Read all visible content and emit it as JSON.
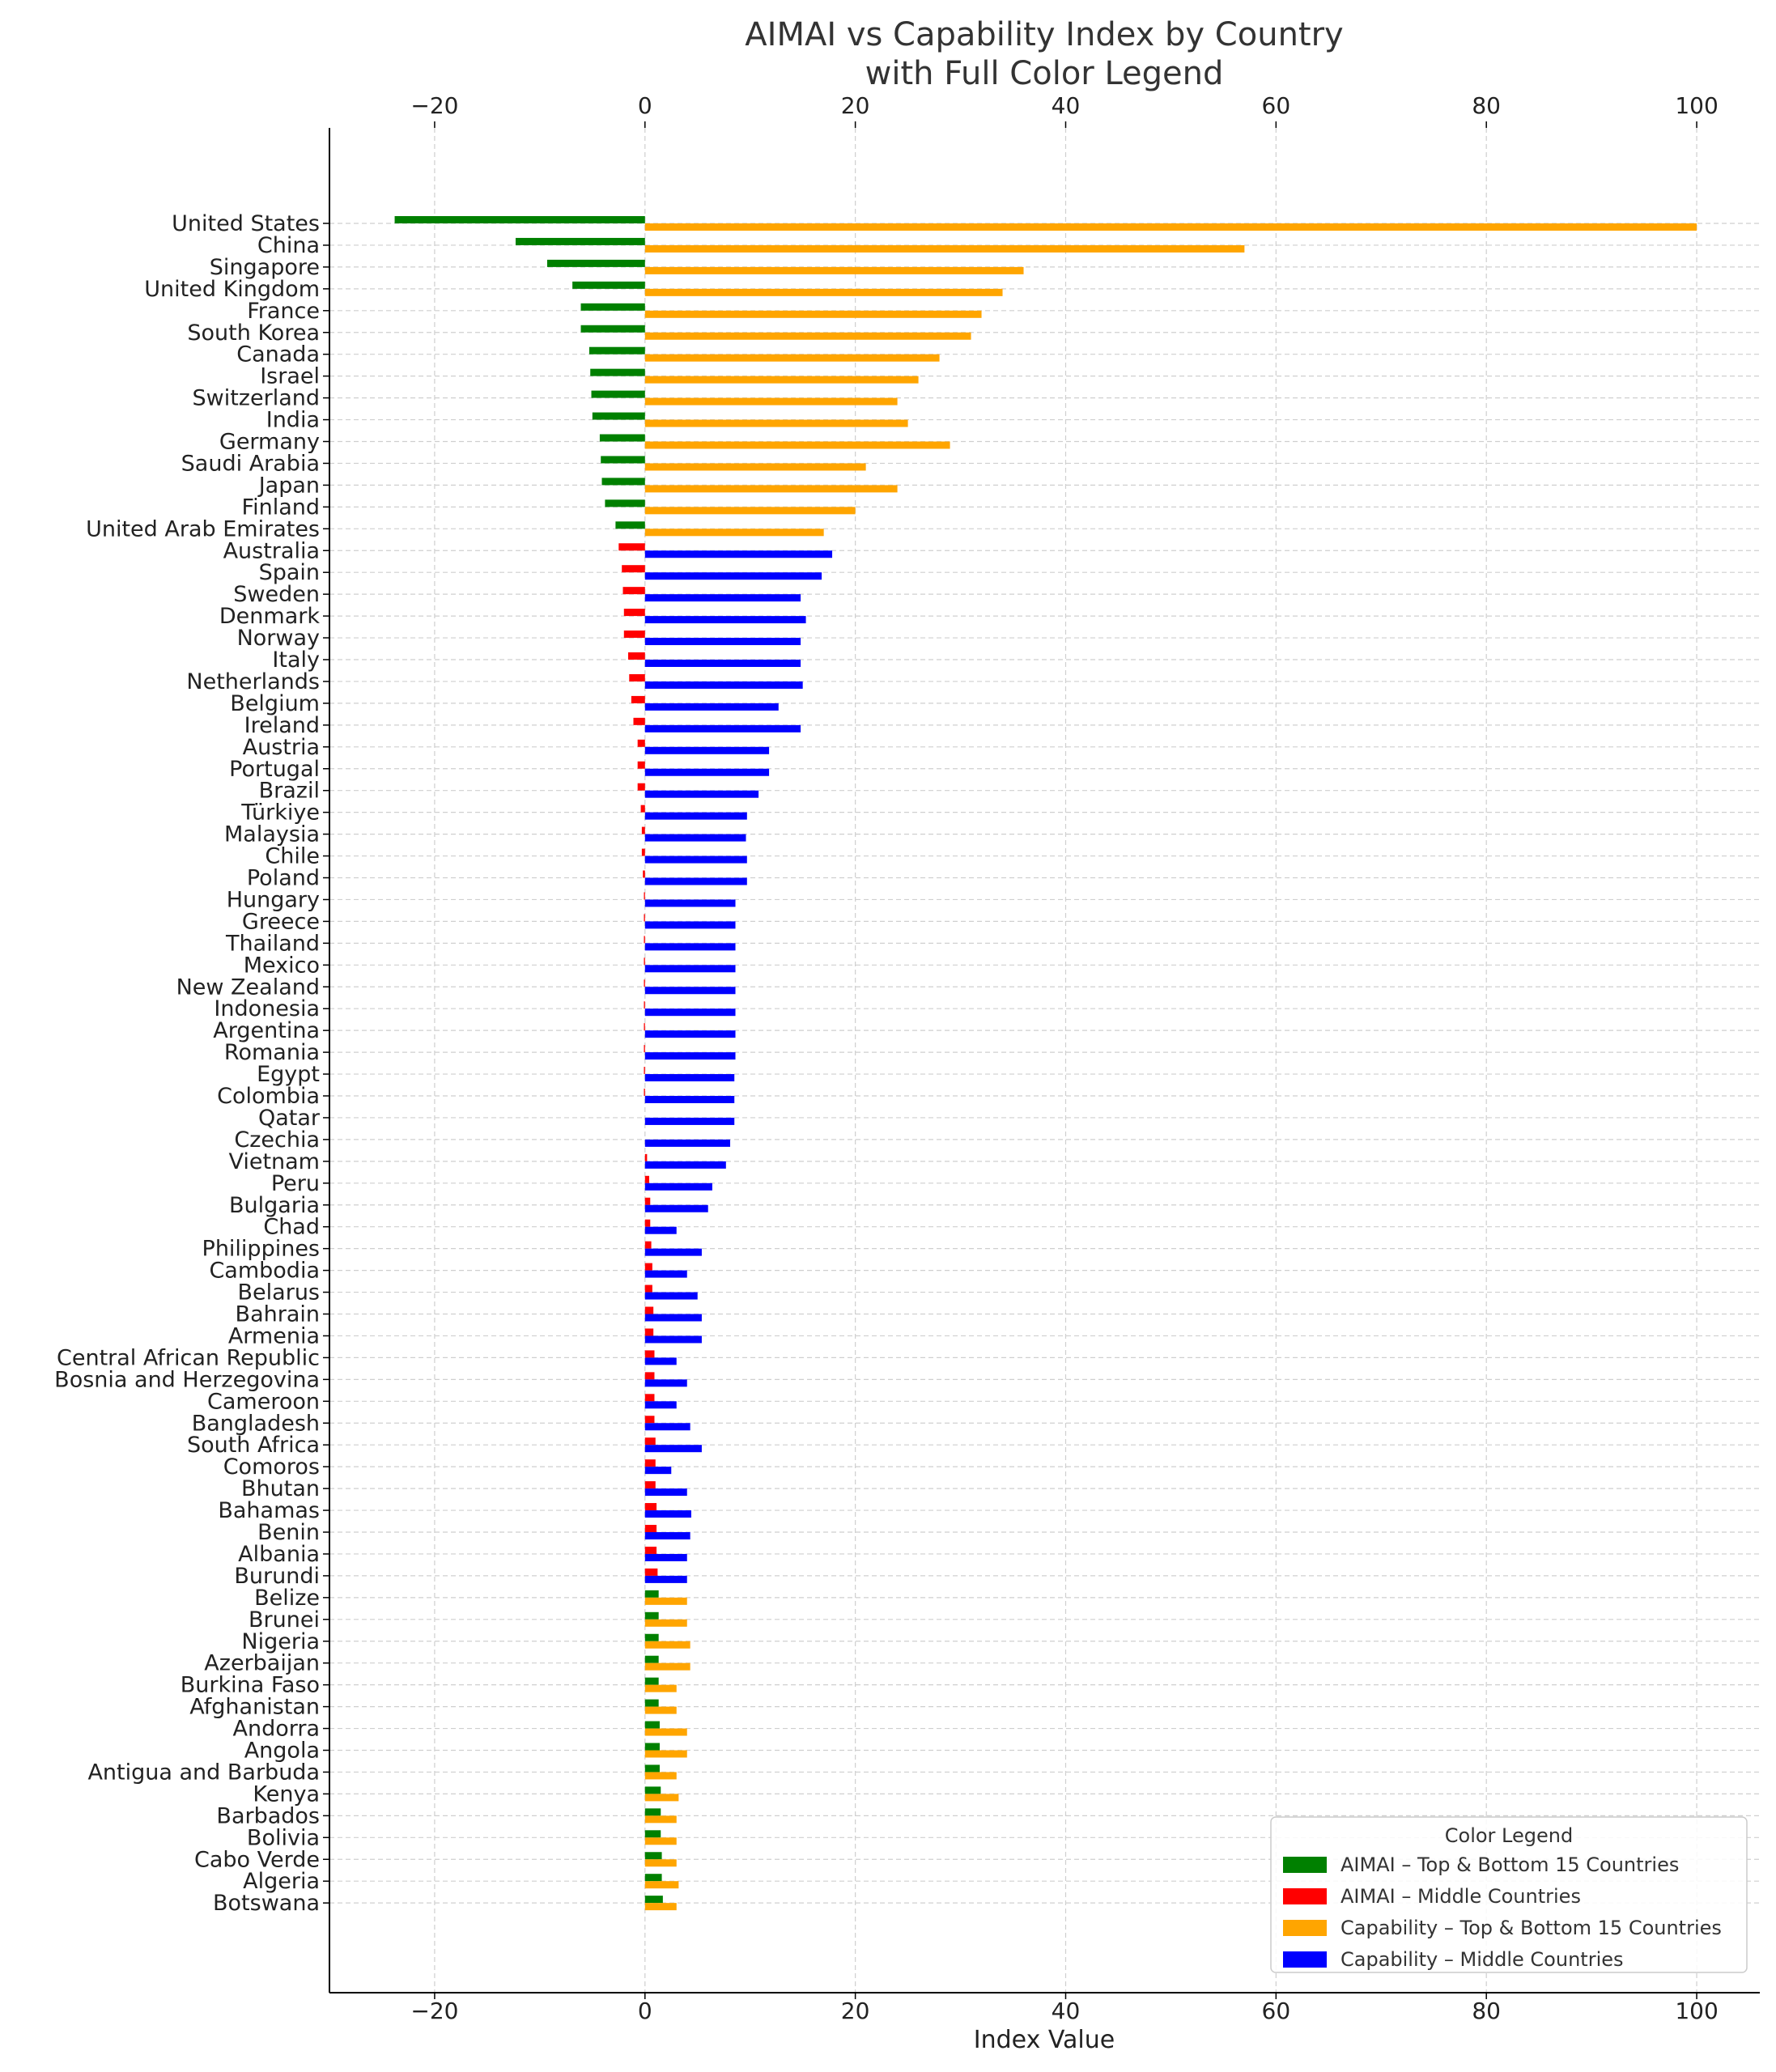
{
  "chart_data": {
    "type": "bar",
    "orientation": "horizontal",
    "title": "AIMAI vs Capability Index by Country\nwith Full Color Legend",
    "xlabel": "Index Value",
    "ylabel": "",
    "xlim": [
      -30,
      106
    ],
    "xticks": [
      -20,
      0,
      20,
      40,
      60,
      80,
      100
    ],
    "grid": true,
    "legend": {
      "title": "Color Legend",
      "placement": "lower-right",
      "entries": [
        {
          "label": "AIMAI – Top & Bottom 15 Countries",
          "color": "#008000"
        },
        {
          "label": "AIMAI – Middle Countries",
          "color": "#ff0000"
        },
        {
          "label": "Capability – Top & Bottom 15 Countries",
          "color": "#ffa500"
        },
        {
          "label": "Capability – Middle Countries",
          "color": "#0000ff"
        }
      ]
    },
    "categories": [
      "United States",
      "China",
      "Singapore",
      "United Kingdom",
      "France",
      "South Korea",
      "Canada",
      "Israel",
      "Switzerland",
      "India",
      "Germany",
      "Saudi Arabia",
      "Japan",
      "Finland",
      "United Arab Emirates",
      "Australia",
      "Spain",
      "Sweden",
      "Denmark",
      "Norway",
      "Italy",
      "Netherlands",
      "Belgium",
      "Ireland",
      "Austria",
      "Portugal",
      "Brazil",
      "Türkiye",
      "Malaysia",
      "Chile",
      "Poland",
      "Hungary",
      "Greece",
      "Thailand",
      "Mexico",
      "New Zealand",
      "Indonesia",
      "Argentina",
      "Romania",
      "Egypt",
      "Colombia",
      "Qatar",
      "Czechia",
      "Vietnam",
      "Peru",
      "Bulgaria",
      "Chad",
      "Philippines",
      "Cambodia",
      "Belarus",
      "Bahrain",
      "Armenia",
      "Central African Republic",
      "Bosnia and Herzegovina",
      "Cameroon",
      "Bangladesh",
      "South Africa",
      "Comoros",
      "Bhutan",
      "Bahamas",
      "Benin",
      "Albania",
      "Burundi",
      "Belize",
      "Brunei",
      "Nigeria",
      "Azerbaijan",
      "Burkina Faso",
      "Afghanistan",
      "Andorra",
      "Angola",
      "Antigua and Barbuda",
      "Kenya",
      "Barbados",
      "Bolivia",
      "Cabo Verde",
      "Algeria",
      "Botswana"
    ],
    "series": [
      {
        "name": "AIMAI",
        "values": [
          -23.8,
          -12.3,
          -9.3,
          -6.9,
          -6.1,
          -6.1,
          -5.3,
          -5.2,
          -5.1,
          -5.0,
          -4.3,
          -4.2,
          -4.1,
          -3.8,
          -2.8,
          -2.5,
          -2.2,
          -2.1,
          -2.0,
          -2.0,
          -1.6,
          -1.5,
          -1.3,
          -1.1,
          -0.7,
          -0.7,
          -0.7,
          -0.4,
          -0.3,
          -0.3,
          -0.2,
          -0.1,
          -0.1,
          -0.1,
          -0.1,
          -0.1,
          -0.1,
          -0.1,
          -0.1,
          -0.1,
          -0.1,
          0.0,
          0.0,
          0.2,
          0.4,
          0.5,
          0.5,
          0.6,
          0.7,
          0.7,
          0.8,
          0.8,
          0.9,
          0.9,
          0.9,
          0.9,
          1.0,
          1.0,
          1.0,
          1.1,
          1.1,
          1.1,
          1.2,
          1.3,
          1.3,
          1.3,
          1.3,
          1.3,
          1.3,
          1.4,
          1.4,
          1.4,
          1.5,
          1.5,
          1.5,
          1.6,
          1.6,
          1.7
        ]
      },
      {
        "name": "Capability",
        "values": [
          100,
          57,
          36,
          34,
          32,
          31,
          28,
          26,
          24,
          25,
          29,
          21,
          24,
          20,
          17,
          17.8,
          16.8,
          14.8,
          15.3,
          14.8,
          14.8,
          15.0,
          12.7,
          14.8,
          11.8,
          11.8,
          10.8,
          9.7,
          9.6,
          9.7,
          9.7,
          8.6,
          8.6,
          8.6,
          8.6,
          8.6,
          8.6,
          8.6,
          8.6,
          8.5,
          8.5,
          8.5,
          8.1,
          7.7,
          6.4,
          6.0,
          3.0,
          5.4,
          4.0,
          5.0,
          5.4,
          5.4,
          3.0,
          4.0,
          3.0,
          4.3,
          5.4,
          2.5,
          4.0,
          4.4,
          4.3,
          4.0,
          4.0,
          4.0,
          4.0,
          4.3,
          4.3,
          3.0,
          3.0,
          4.0,
          4.0,
          3.0,
          3.2,
          3.0,
          3.0,
          3.0,
          3.2,
          3.0
        ]
      }
    ]
  }
}
